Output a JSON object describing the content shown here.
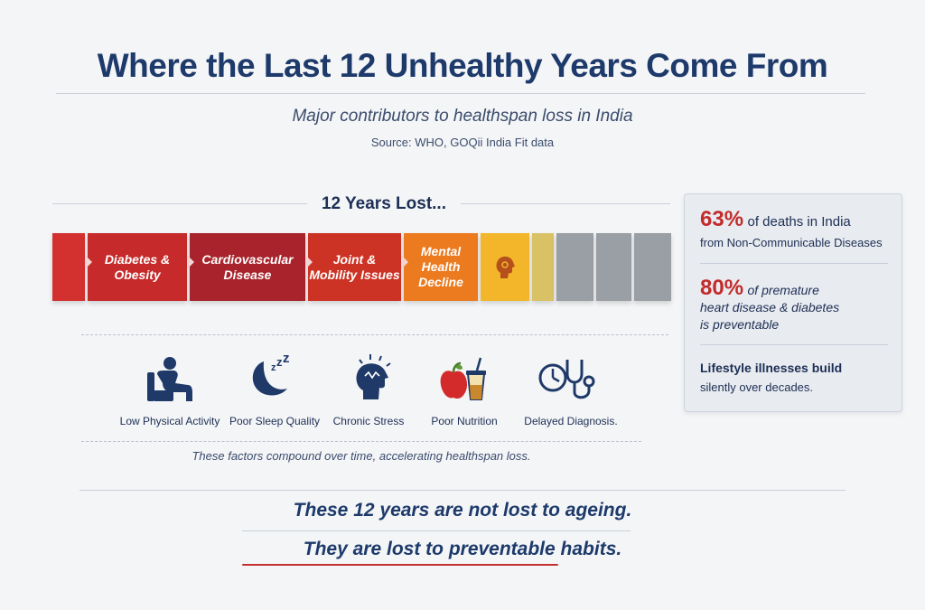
{
  "title": "Where the Last 12 Unhealthy Years Come From",
  "subtitle": "Major contributors to healthspan loss in India",
  "source": "Source: WHO, GOQii India Fit data",
  "years_lost": "12 Years Lost...",
  "segments": [
    {
      "label": "Diabetes & Obesity",
      "color": "#c62a2a"
    },
    {
      "label": "Cardiovascular Disease",
      "color": "#a8232b"
    },
    {
      "label": "Joint & Mobility Issues",
      "color": "#cc3324"
    },
    {
      "label": "Mental Health Decline",
      "color": "#ec7a1f"
    }
  ],
  "stats": {
    "stat1_value": "63%",
    "stat1_rest": "of deaths in India",
    "stat1_line2": "from Non-Communicable Diseases",
    "stat2_value": "80%",
    "stat2_rest": "of premature",
    "stat2_line2": "heart disease & diabetes",
    "stat2_line3": "is preventable",
    "stat3_line1": "Lifestyle illnesses build",
    "stat3_line2": "silently over decades."
  },
  "factors": [
    {
      "label": "Low Physical Activity",
      "icon": "person-sitting-icon"
    },
    {
      "label": "Poor Sleep Quality",
      "icon": "moon-sleep-icon"
    },
    {
      "label": "Chronic Stress",
      "icon": "stressed-head-icon"
    },
    {
      "label": "Poor Nutrition",
      "icon": "apple-drink-icon"
    },
    {
      "label": "Delayed Diagnosis.",
      "icon": "clock-stethoscope-icon"
    }
  ],
  "compound_note": "These factors compound over time, accelerating healthspan loss.",
  "closing_line1": "These 12 years are not lost to ageing.",
  "closing_line2": "They are lost to preventable habits."
}
